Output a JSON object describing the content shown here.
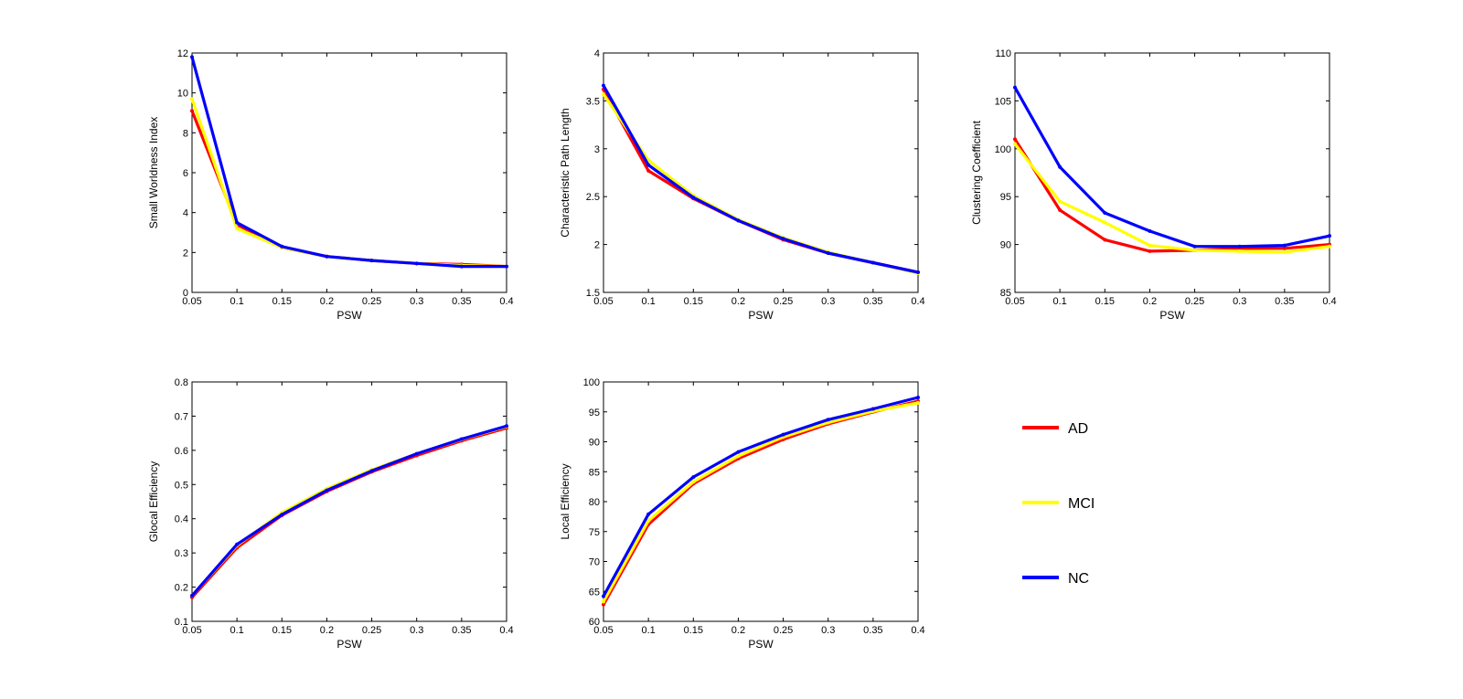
{
  "series_styles": [
    {
      "name": "AD",
      "color": "#ff0000"
    },
    {
      "name": "MCI",
      "color": "#ffff00"
    },
    {
      "name": "NC",
      "color": "#0000ff"
    }
  ],
  "legend": {
    "placement": "bottom-right",
    "entries": [
      "AD",
      "MCI",
      "NC"
    ]
  },
  "chart_data": [
    {
      "type": "line",
      "ylabel": "Small Worldness Index",
      "xlabel": "PSW",
      "x": [
        0.05,
        0.1,
        0.15,
        0.2,
        0.25,
        0.3,
        0.35,
        0.4
      ],
      "xticks": [
        "0.05",
        "0.1",
        "0.15",
        "0.2",
        "0.25",
        "0.3",
        "0.35",
        "0.4"
      ],
      "ylim": [
        0,
        12
      ],
      "yticks": [
        "0",
        "2",
        "4",
        "6",
        "8",
        "10",
        "12"
      ],
      "series": [
        {
          "name": "AD",
          "values": [
            9.1,
            3.4,
            2.25,
            1.8,
            1.6,
            1.45,
            1.4,
            1.3
          ]
        },
        {
          "name": "MCI",
          "values": [
            9.7,
            3.2,
            2.25,
            1.8,
            1.6,
            1.45,
            1.35,
            1.3
          ]
        },
        {
          "name": "NC",
          "values": [
            11.8,
            3.5,
            2.3,
            1.8,
            1.6,
            1.45,
            1.3,
            1.3
          ]
        }
      ]
    },
    {
      "type": "line",
      "ylabel": "Characteristic Path Length",
      "xlabel": "PSW",
      "x": [
        0.05,
        0.1,
        0.15,
        0.2,
        0.25,
        0.3,
        0.35,
        0.4
      ],
      "xticks": [
        "0.05",
        "0.1",
        "0.15",
        "0.2",
        "0.25",
        "0.3",
        "0.35",
        "0.4"
      ],
      "ylim": [
        1.5,
        4
      ],
      "yticks": [
        "1.5",
        "2",
        "2.5",
        "3",
        "3.5",
        "4"
      ],
      "series": [
        {
          "name": "AD",
          "values": [
            3.62,
            2.77,
            2.48,
            2.25,
            2.05,
            1.91,
            1.81,
            1.71
          ]
        },
        {
          "name": "MCI",
          "values": [
            3.57,
            2.88,
            2.51,
            2.26,
            2.07,
            1.92,
            1.81,
            1.7
          ]
        },
        {
          "name": "NC",
          "values": [
            3.66,
            2.83,
            2.49,
            2.25,
            2.06,
            1.91,
            1.81,
            1.71
          ]
        }
      ]
    },
    {
      "type": "line",
      "ylabel": "Clustering Coefficient",
      "xlabel": "PSW",
      "x": [
        0.05,
        0.1,
        0.15,
        0.2,
        0.25,
        0.3,
        0.35,
        0.4
      ],
      "xticks": [
        "0.05",
        "0.1",
        "0.15",
        "0.2",
        "0.25",
        "0.3",
        "0.35",
        "0.4"
      ],
      "ylim": [
        85,
        110
      ],
      "yticks": [
        "85",
        "90",
        "95",
        "100",
        "105",
        "110"
      ],
      "series": [
        {
          "name": "AD",
          "values": [
            101.0,
            93.6,
            90.5,
            89.3,
            89.4,
            89.6,
            89.6,
            90.0
          ]
        },
        {
          "name": "MCI",
          "values": [
            100.5,
            94.5,
            92.3,
            89.9,
            89.4,
            89.3,
            89.2,
            89.8
          ]
        },
        {
          "name": "NC",
          "values": [
            106.4,
            98.1,
            93.3,
            91.4,
            89.8,
            89.8,
            89.9,
            90.9
          ]
        }
      ]
    },
    {
      "type": "line",
      "ylabel": "Glocal Efficiency",
      "xlabel": "PSW",
      "x": [
        0.05,
        0.1,
        0.15,
        0.2,
        0.25,
        0.3,
        0.35,
        0.4
      ],
      "xticks": [
        "0.05",
        "0.1",
        "0.15",
        "0.2",
        "0.25",
        "0.3",
        "0.35",
        "0.4"
      ],
      "ylim": [
        0.1,
        0.8
      ],
      "yticks": [
        "0.1",
        "0.2",
        "0.3",
        "0.4",
        "0.5",
        "0.6",
        "0.7",
        "0.8"
      ],
      "series": [
        {
          "name": "AD",
          "values": [
            0.17,
            0.315,
            0.41,
            0.48,
            0.537,
            0.585,
            0.628,
            0.665
          ]
        },
        {
          "name": "MCI",
          "values": [
            0.175,
            0.322,
            0.418,
            0.488,
            0.543,
            0.59,
            0.632,
            0.669
          ]
        },
        {
          "name": "NC",
          "values": [
            0.175,
            0.325,
            0.412,
            0.483,
            0.54,
            0.59,
            0.633,
            0.671
          ]
        }
      ]
    },
    {
      "type": "line",
      "ylabel": "Local Efficiency",
      "xlabel": "PSW",
      "x": [
        0.05,
        0.1,
        0.15,
        0.2,
        0.25,
        0.3,
        0.35,
        0.4
      ],
      "xticks": [
        "0.05",
        "0.1",
        "0.15",
        "0.2",
        "0.25",
        "0.3",
        "0.35",
        "0.4"
      ],
      "ylim": [
        60,
        100
      ],
      "yticks": [
        "60",
        "65",
        "70",
        "75",
        "80",
        "85",
        "90",
        "95",
        "100"
      ],
      "series": [
        {
          "name": "AD",
          "values": [
            62.8,
            76.2,
            83.0,
            87.2,
            90.4,
            93.0,
            95.0,
            96.8
          ]
        },
        {
          "name": "MCI",
          "values": [
            63.3,
            76.8,
            83.3,
            87.6,
            90.8,
            93.2,
            95.1,
            96.5
          ]
        },
        {
          "name": "NC",
          "values": [
            64.2,
            77.9,
            84.1,
            88.3,
            91.2,
            93.7,
            95.5,
            97.4
          ]
        }
      ]
    }
  ]
}
